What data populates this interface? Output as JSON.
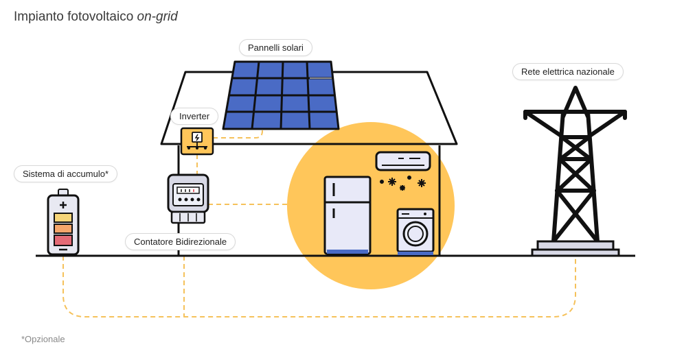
{
  "title": {
    "text": "Impianto fotovoltaico",
    "italic": "on-grid"
  },
  "labels": {
    "panels": "Pannelli solari",
    "inverter": "Inverter",
    "storage": "Sistema di accumulo*",
    "meter": "Contatore Bidirezionale",
    "grid": "Rete elettrica nazionale"
  },
  "footnote": "*Opzionale",
  "colors": {
    "accent": "#ffc65a",
    "panel": "#4a6bc5",
    "line": "#111111",
    "dashed": "#f5c15a",
    "battery_top": "#f6d579",
    "battery_mid": "#f5a66b",
    "battery_bottom": "#e46b76",
    "appliance": "#e8e9f8"
  },
  "icons": [
    "solar-panel-icon",
    "inverter-icon",
    "battery-icon",
    "meter-icon",
    "fridge-icon",
    "air-conditioner-icon",
    "washing-machine-icon",
    "pylon-icon"
  ]
}
